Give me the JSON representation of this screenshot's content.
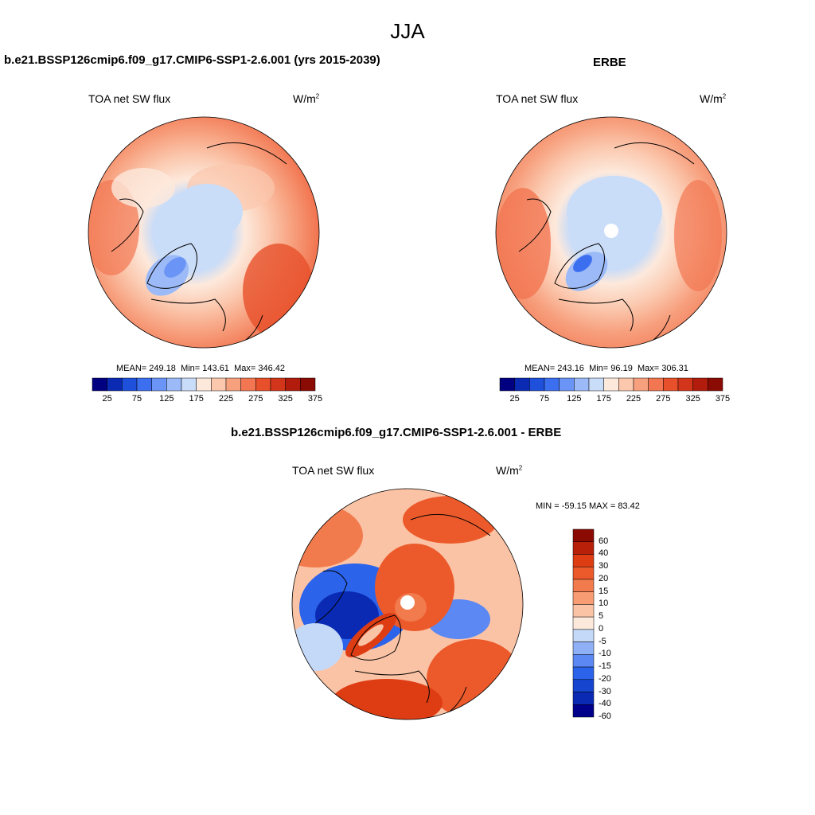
{
  "figure": {
    "title": "JJA"
  },
  "panels": [
    {
      "title": "b.e21.BSSP126cmip6.f09_g17.CMIP6-SSP1-2.6.001 (yrs 2015-2039)",
      "variable": "TOA net SW flux",
      "units_base": "W/m",
      "units_exp": "2",
      "stats": {
        "mean_label": "MEAN=",
        "mean": "249.18",
        "min_label": "Min=",
        "min": "143.61",
        "max_label": "Max=",
        "max": "346.42"
      }
    },
    {
      "title": "ERBE",
      "variable": "TOA net SW flux",
      "units_base": "W/m",
      "units_exp": "2",
      "stats": {
        "mean_label": "MEAN=",
        "mean": "243.16",
        "min_label": "Min=",
        "min": "96.19",
        "max_label": "Max=",
        "max": "306.31"
      }
    },
    {
      "title": "b.e21.BSSP126cmip6.f09_g17.CMIP6-SSP1-2.6.001 - ERBE",
      "variable": "TOA net SW flux",
      "units_base": "W/m",
      "units_exp": "2",
      "minmax": "MIN = -59.15 MAX =  83.42"
    }
  ],
  "abs_colorbar": {
    "colors": [
      "#000080",
      "#0a2ab4",
      "#1e50dc",
      "#3c6ef0",
      "#6a94f5",
      "#9bbaf7",
      "#c9dcf8",
      "#fde9dc",
      "#fbc8ae",
      "#f7a07e",
      "#f27651",
      "#e7502b",
      "#d2351a",
      "#b11c0c",
      "#8a0a04"
    ],
    "tick_labels": [
      "25",
      "75",
      "125",
      "175",
      "225",
      "275",
      "325",
      "375"
    ]
  },
  "diff_colorbar": {
    "colors": [
      "#00008a",
      "#0a2ab4",
      "#1646d0",
      "#2b63ea",
      "#5b88f2",
      "#8fb0f6",
      "#c4d9f7",
      "#fde9dc",
      "#fbc3a5",
      "#f89c73",
      "#f27b4d",
      "#ec5a2b",
      "#de3d14",
      "#b8200a",
      "#8b0a02"
    ],
    "tick_labels": [
      "60",
      "40",
      "30",
      "20",
      "15",
      "10",
      "5",
      "0",
      "-5",
      "-10",
      "-15",
      "-20",
      "-30",
      "-40",
      "-60"
    ]
  },
  "map_colors": {
    "ocean_warm": "#f27651",
    "low_blue": "#9bbaf7",
    "pale": "#fde9dc",
    "coast": "#000000"
  }
}
